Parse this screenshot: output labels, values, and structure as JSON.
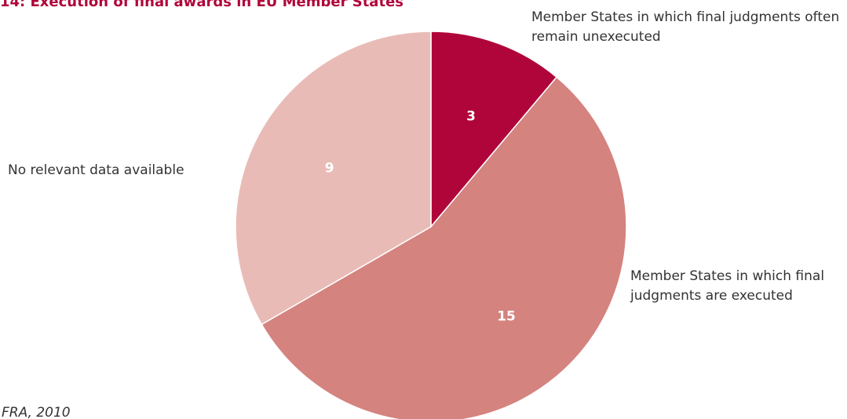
{
  "chart_data": {
    "type": "pie",
    "title": "14: Execution of final awards in EU Member States",
    "categories": [
      "Member States in which final judgments often remain unexecuted",
      "Member States in which final judgments are executed",
      "No relevant data available"
    ],
    "values": [
      3,
      15,
      9
    ],
    "colors": [
      "#b0053a",
      "#d4837f",
      "#e9bbb7"
    ],
    "source": "FRA, 2010"
  }
}
